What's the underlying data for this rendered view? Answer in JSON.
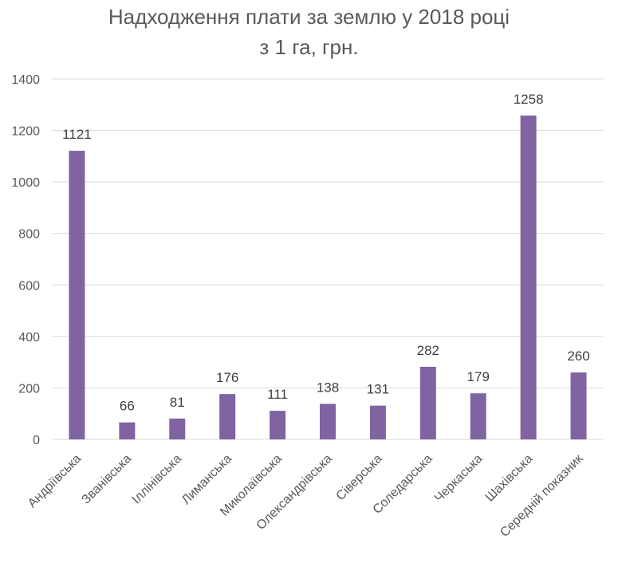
{
  "chart_data": {
    "type": "bar",
    "title": "Надходження плати за землю у 2018 році",
    "subtitle": "з 1 га, грн.",
    "categories": [
      "Андріївська",
      "Званівська",
      "Іллінівська",
      "Лиманська",
      "Миколаївська",
      "Олександрівська",
      "Сіверська",
      "Соледарська",
      "Черкаська",
      "Шахівська",
      "Середній показник"
    ],
    "values": [
      1121,
      66,
      81,
      176,
      111,
      138,
      131,
      282,
      179,
      1258,
      260
    ],
    "ylim": [
      0,
      1400
    ],
    "yticks": [
      0,
      200,
      400,
      600,
      800,
      1000,
      1200,
      1400
    ],
    "xlabel": "",
    "ylabel": "",
    "grid": true,
    "legend": "none",
    "bar_color": "#8064a2",
    "grid_color": "#d9d9d9"
  }
}
